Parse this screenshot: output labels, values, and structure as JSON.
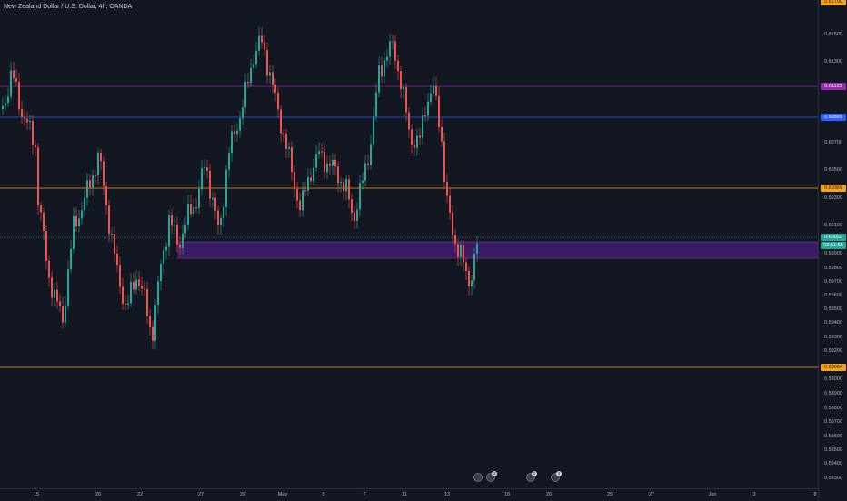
{
  "chart": {
    "title": "New Zealand Dollar / U.S. Dollar, 4h, OANDA",
    "colors": {
      "background": "#131722",
      "up": "#26a69a",
      "down": "#ef5350",
      "zone": "#4a1e7a"
    }
  },
  "price_axis": {
    "ticks": [
      "0.61500",
      "0.61300",
      "0.60700",
      "0.60500",
      "0.60300",
      "0.60100",
      "0.59900",
      "0.59800",
      "0.59700",
      "0.59600",
      "0.59500",
      "0.59400",
      "0.59300",
      "0.59200",
      "0.59000",
      "0.58900",
      "0.58800",
      "0.58700",
      "0.58600",
      "0.58500",
      "0.58400",
      "0.58300"
    ],
    "top_partial": "0.61700",
    "tags": [
      {
        "label": "0.61123",
        "level": 0.61123,
        "bg": "#9c27b0",
        "fg": "#ffffff"
      },
      {
        "label": "0.60899",
        "level": 0.60899,
        "bg": "#2962ff",
        "fg": "#ffffff"
      },
      {
        "label": "0.60369",
        "level": 0.60369,
        "bg": "#f7a21b",
        "fg": "#131722"
      },
      {
        "label": "0.60020",
        "level": 0.6002,
        "bg": "#26a69a",
        "fg": "#ffffff"
      },
      {
        "label": "02:51:55",
        "level": 0.5995,
        "bg": "#26a69a",
        "fg": "#ffffff"
      },
      {
        "label": "0.59084",
        "level": 0.59084,
        "bg": "#f7a21b",
        "fg": "#131722"
      }
    ]
  },
  "time_axis": {
    "labels": [
      "15",
      "20",
      "22",
      "27",
      "29",
      "May",
      "5",
      "7",
      "11",
      "13",
      "18",
      "20",
      "25",
      "27",
      "Jun",
      "3",
      "8"
    ]
  },
  "chart_data": {
    "type": "candlestick",
    "y_scale": {
      "min": 0.5825,
      "max": 0.6175
    },
    "levels": [
      {
        "value": 0.61123,
        "color": "#9c27b0"
      },
      {
        "value": 0.60899,
        "color": "#2962ff"
      },
      {
        "value": 0.60369,
        "color": "#f7a21b"
      },
      {
        "value": 0.59084,
        "color": "#f7a21b"
      }
    ],
    "zone": {
      "from": 0.5986,
      "to": 0.6,
      "color": "#4a1e7a"
    },
    "current_price": 0.6002
  },
  "events": [
    {
      "icon": "news-flag-icon",
      "count": ""
    },
    {
      "icon": "news-flag-icon",
      "count": "3"
    },
    {
      "icon": "news-flag-icon",
      "count": "2"
    },
    {
      "icon": "news-flag-icon",
      "count": "2"
    }
  ]
}
